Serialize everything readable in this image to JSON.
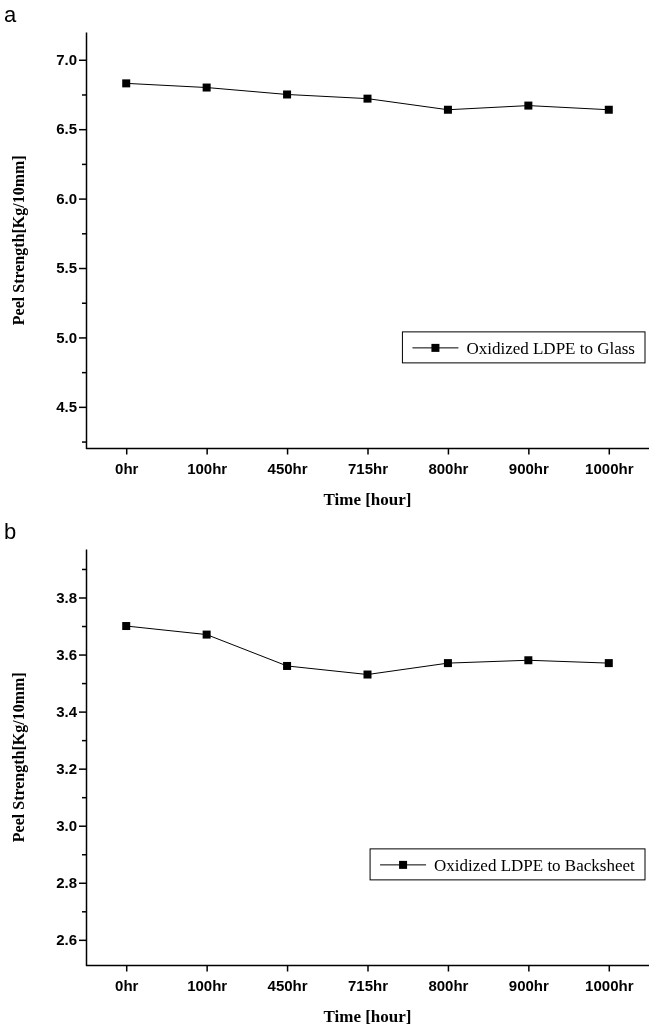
{
  "chart_data": [
    {
      "type": "line",
      "title": "a",
      "xlabel": "Time [hour]",
      "ylabel": "Peel Strength[Kg/10mm]",
      "categories": [
        "0hr",
        "100hr",
        "450hr",
        "715hr",
        "800hr",
        "900hr",
        "1000hr"
      ],
      "series": [
        {
          "name": "Oxidized LDPE to Glass",
          "color": "#000000",
          "values": [
            6.83,
            6.8,
            6.75,
            6.72,
            6.64,
            6.67,
            6.64
          ]
        }
      ],
      "ylim": [
        4.2,
        7.2
      ],
      "yticks": [
        {
          "value": 4.25,
          "label": null
        },
        4.5,
        {
          "value": 4.75,
          "label": null
        },
        {
          "value": 5,
          "label": "5.0"
        },
        {
          "value": 5.25,
          "label": null
        },
        5.5,
        {
          "value": 5.75,
          "label": null
        },
        {
          "value": 6,
          "label": "6.0"
        },
        {
          "value": 6.25,
          "label": null
        },
        6.5,
        {
          "value": 6.75,
          "label": null
        },
        {
          "value": 7,
          "label": "7.0"
        }
      ],
      "legend": "bottom right",
      "marker": "square",
      "line_style": "solid",
      "grid": false
    },
    {
      "type": "line",
      "title": "b",
      "xlabel": "Time [hour]",
      "ylabel": "Peel Strength[Kg/10mm]",
      "categories": [
        "0hr",
        "100hr",
        "450hr",
        "715hr",
        "800hr",
        "900hr",
        "1000hr"
      ],
      "series": [
        {
          "name": "Oxidized LDPE to Backsheet",
          "color": "#000000",
          "values": [
            3.7,
            3.67,
            3.56,
            3.53,
            3.57,
            3.58,
            3.57
          ]
        }
      ],
      "ylim": [
        2.51,
        3.97
      ],
      "yticks": [
        2.6,
        {
          "value": 2.7,
          "label": null
        },
        2.8,
        {
          "value": 2.9,
          "label": null
        },
        {
          "value": 3,
          "label": "3.0"
        },
        {
          "value": 3.1,
          "label": null
        },
        3.2,
        {
          "value": 3.3,
          "label": null
        },
        3.4,
        {
          "value": 3.5,
          "label": null
        },
        3.6,
        {
          "value": 3.7,
          "label": null
        },
        3.8,
        {
          "value": 3.9,
          "label": null
        }
      ],
      "legend": "bottom right",
      "marker": "square",
      "line_style": "solid",
      "grid": false
    }
  ]
}
